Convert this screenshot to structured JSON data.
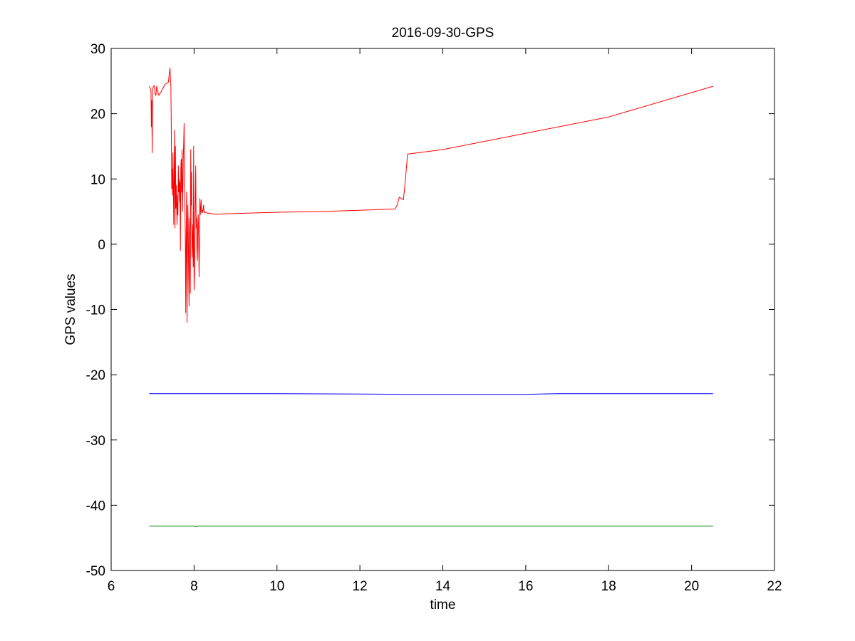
{
  "chart_data": {
    "type": "line",
    "title": "2016-09-30-GPS",
    "xlabel": "time",
    "ylabel": "GPS values",
    "xlim": [
      6,
      22
    ],
    "ylim": [
      -50,
      30
    ],
    "xticks": [
      6,
      8,
      10,
      12,
      14,
      16,
      18,
      20,
      22
    ],
    "yticks": [
      -50,
      -40,
      -30,
      -20,
      -10,
      0,
      10,
      20,
      30
    ],
    "grid": false,
    "legend": "none",
    "series": [
      {
        "color": "#ff0000",
        "x": [
          6.92,
          6.94,
          6.96,
          6.97,
          6.98,
          6.99,
          7.0,
          7.02,
          7.04,
          7.06,
          7.08,
          7.1,
          7.12,
          7.15,
          7.2,
          7.3,
          7.38,
          7.4,
          7.42,
          7.43,
          7.44,
          7.45,
          7.46,
          7.47,
          7.48,
          7.49,
          7.5,
          7.51,
          7.52,
          7.53,
          7.54,
          7.55,
          7.56,
          7.57,
          7.58,
          7.59,
          7.6,
          7.61,
          7.62,
          7.63,
          7.64,
          7.65,
          7.66,
          7.67,
          7.68,
          7.69,
          7.7,
          7.71,
          7.72,
          7.73,
          7.74,
          7.75,
          7.76,
          7.77,
          7.78,
          7.79,
          7.8,
          7.81,
          7.82,
          7.83,
          7.84,
          7.85,
          7.86,
          7.87,
          7.88,
          7.89,
          7.9,
          7.91,
          7.92,
          7.93,
          7.94,
          7.95,
          7.96,
          7.97,
          7.98,
          7.99,
          8.0,
          8.01,
          8.02,
          8.03,
          8.04,
          8.05,
          8.06,
          8.07,
          8.08,
          8.09,
          8.1,
          8.11,
          8.12,
          8.13,
          8.14,
          8.15,
          8.16,
          8.17,
          8.18,
          8.19,
          8.2,
          8.21,
          8.22,
          8.23,
          8.24,
          8.25,
          8.27,
          8.3,
          8.33,
          8.36,
          8.4,
          8.5,
          9.0,
          10.0,
          11.0,
          12.0,
          12.85,
          12.9,
          12.95,
          13.0,
          13.05,
          13.1,
          13.15,
          14.0,
          16.0,
          18.0,
          20.52
        ],
        "y": [
          24.2,
          24.0,
          23.5,
          18.0,
          22.0,
          14.0,
          23.8,
          24.2,
          24.3,
          23.0,
          22.8,
          24.2,
          23.5,
          22.8,
          23.3,
          24.5,
          24.8,
          26.0,
          27.0,
          25.5,
          24.5,
          18.0,
          8.5,
          11.5,
          7.5,
          14.0,
          9.0,
          3.0,
          10.5,
          17.5,
          2.5,
          15.0,
          5.5,
          9.0,
          6.0,
          3.0,
          7.5,
          4.5,
          12.0,
          8.0,
          10.0,
          6.5,
          9.5,
          -1.0,
          11.5,
          13.0,
          8.0,
          14.5,
          5.0,
          9.0,
          13.0,
          15.5,
          18.5,
          10.0,
          5.5,
          0.0,
          -10.5,
          1.0,
          8.0,
          -12.0,
          -2.0,
          6.0,
          3.0,
          -5.0,
          -9.5,
          4.0,
          1.0,
          -7.5,
          14.5,
          6.0,
          11.0,
          -2.0,
          3.0,
          0.5,
          -3.5,
          15.0,
          -7.0,
          -4.5,
          0.5,
          7.5,
          12.0,
          2.5,
          4.0,
          -1.0,
          -2.5,
          3.0,
          4.5,
          1.0,
          -5.0,
          -0.5,
          7.0,
          4.5,
          5.5,
          6.8,
          5.0,
          4.8,
          5.2,
          4.9,
          5.5,
          6.0,
          5.1,
          4.8,
          4.9,
          4.9,
          4.7,
          4.8,
          4.7,
          4.6,
          4.7,
          4.9,
          5.0,
          5.2,
          5.4,
          6.0,
          7.2,
          7.0,
          6.8,
          10.0,
          13.8,
          14.5,
          17.0,
          19.5,
          24.2
        ]
      },
      {
        "color": "#0000ff",
        "x": [
          6.92,
          7.5,
          8.0,
          10.0,
          13.1,
          14.0,
          16.0,
          16.8,
          18.0,
          20.52
        ],
        "y": [
          -22.9,
          -22.9,
          -22.9,
          -22.9,
          -23.0,
          -23.0,
          -23.0,
          -22.9,
          -22.9,
          -22.9
        ]
      },
      {
        "color": "#008000",
        "x": [
          6.92,
          8.0,
          8.05,
          8.1,
          10.0,
          14.0,
          18.0,
          20.52
        ],
        "y": [
          -43.2,
          -43.2,
          -43.3,
          -43.2,
          -43.2,
          -43.2,
          -43.2,
          -43.2
        ]
      }
    ]
  }
}
